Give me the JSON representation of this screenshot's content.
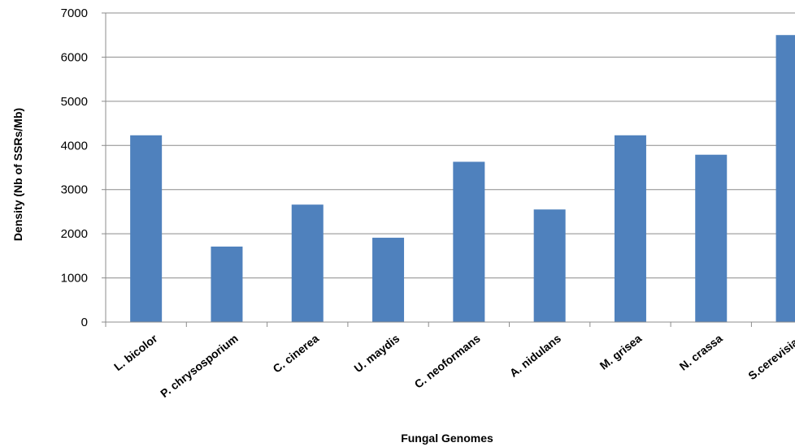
{
  "chart_data": {
    "type": "bar",
    "title": "",
    "xlabel": "Fungal Genomes",
    "ylabel": "Density (Nb of SSRs/Mb)",
    "ylim": [
      0,
      7000
    ],
    "yticks": [
      0,
      1000,
      2000,
      3000,
      4000,
      5000,
      6000,
      7000
    ],
    "grid": true,
    "legend": "none",
    "categories": [
      "L. bicolor",
      "P. chrysosporium",
      "C. cinerea",
      "U. maydis",
      "C. neoformans",
      "A. nidulans",
      "M. grisea",
      "N. crassa",
      "S.cerevisiae"
    ],
    "series": [
      {
        "values": [
          4230,
          1710,
          2660,
          1910,
          3630,
          2550,
          4230,
          3790,
          6500
        ]
      }
    ],
    "colors": {
      "bar": "#4f81bd",
      "grid": "#8c8c8c",
      "axis": "#8c8c8c"
    }
  }
}
